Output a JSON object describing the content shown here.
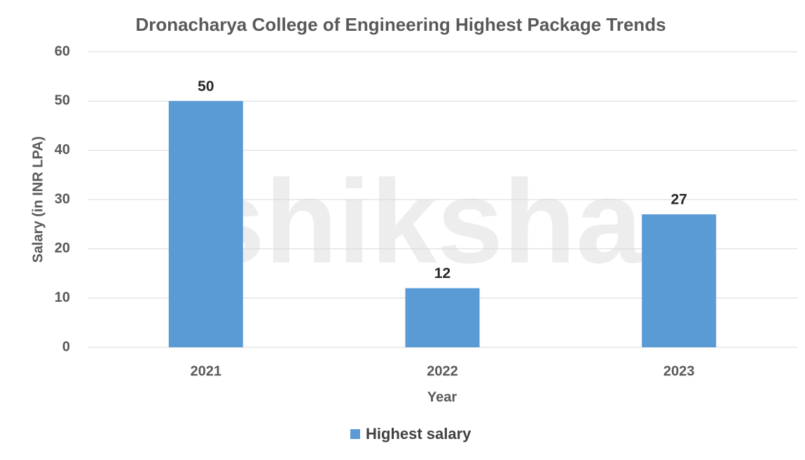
{
  "chart_data": {
    "type": "bar",
    "title": "Dronacharya College of Engineering Highest Package Trends",
    "categories": [
      "2021",
      "2022",
      "2023"
    ],
    "values": [
      50,
      12,
      27
    ],
    "color": "#5b9bd5",
    "series_name": "Highest salary",
    "xlabel": "Year",
    "ylabel": "Salary (in INR LPA)",
    "ylim": [
      0,
      60
    ],
    "yticks": [
      0,
      10,
      20,
      30,
      40,
      50,
      60
    ],
    "grid": true,
    "legend": "bottom",
    "watermark": "shiksha"
  }
}
